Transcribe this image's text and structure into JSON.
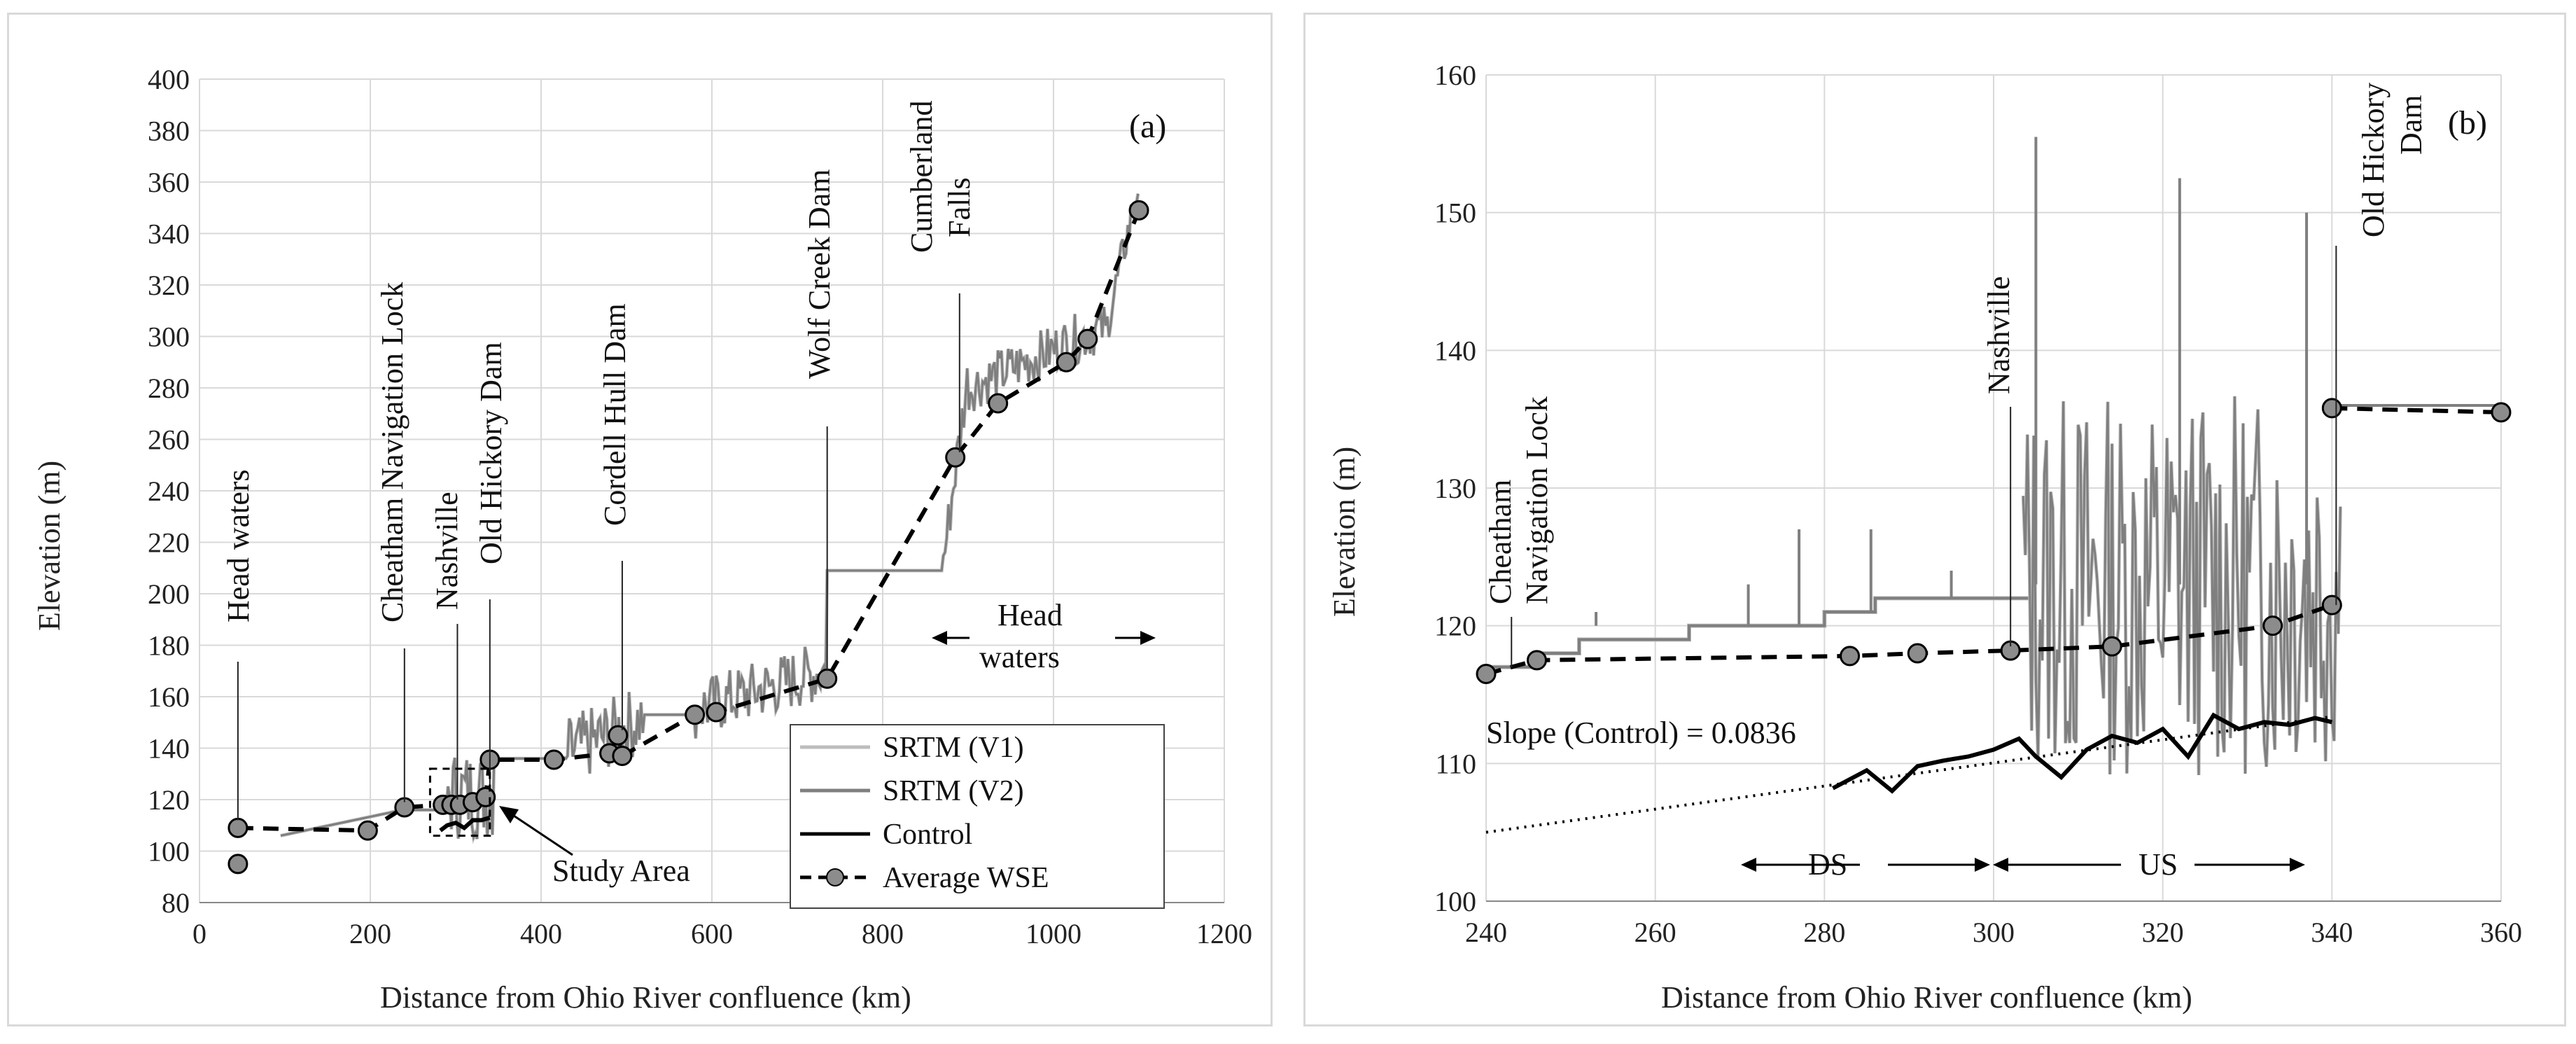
{
  "figure": {
    "panels": [
      "(a)",
      "(b)"
    ]
  },
  "chart_data": [
    {
      "type": "line",
      "panel_label": "(a)",
      "xlabel": "Distance from Ohio River confluence (km)",
      "ylabel": "Elevation (m)",
      "xlim": [
        0,
        1200
      ],
      "ylim": [
        80,
        400
      ],
      "x_ticks": [
        0,
        200,
        400,
        600,
        800,
        1000,
        1200
      ],
      "y_ticks": [
        80,
        100,
        120,
        140,
        160,
        180,
        200,
        220,
        240,
        260,
        280,
        300,
        320,
        340,
        360,
        380,
        400
      ],
      "legend": [
        "SRTM (V1)",
        "SRTM (V2)",
        "Control",
        "Average WSE"
      ],
      "series": [
        {
          "name": "Average WSE",
          "style": "dashed-markers",
          "x": [
            45,
            197,
            240,
            285,
            295,
            305,
            320,
            335,
            340,
            415,
            480,
            490,
            495,
            580,
            605,
            735,
            885,
            935,
            1015,
            1040,
            1100
          ],
          "y": [
            109,
            108,
            117,
            118,
            118,
            118,
            119,
            121,
            135.5,
            135.5,
            138,
            145,
            137,
            153,
            154,
            167,
            253,
            274,
            290,
            299,
            349
          ]
        },
        {
          "name": "Average WSE (extra point)",
          "style": "marker-only",
          "x": [
            45
          ],
          "y": [
            95
          ]
        },
        {
          "name": "Control",
          "style": "solid-black",
          "x": [
            282,
            290,
            300,
            310,
            320,
            330,
            340
          ],
          "y": [
            108,
            110,
            111,
            109,
            112,
            112,
            113
          ]
        }
      ],
      "annotations": [
        {
          "text": "Head waters",
          "x": 45,
          "y": 109
        },
        {
          "text": "Cheatham Navigation Lock",
          "x": 240,
          "y": 117
        },
        {
          "text": "Nashville",
          "x": 302,
          "y": 118
        },
        {
          "text": "Old Hickory Dam",
          "x": 340,
          "y": 121
        },
        {
          "text": "Cordell Hull Dam",
          "x": 495,
          "y": 145
        },
        {
          "text": "Wolf Creek Dam",
          "x": 735,
          "y": 167
        },
        {
          "text": "Cumberland Falls",
          "x": 890,
          "y": 253
        },
        {
          "text": "Head waters",
          "x": 1000,
          "y": 180
        },
        {
          "text": "Study Area",
          "x": 330,
          "y": 100
        }
      ]
    },
    {
      "type": "line",
      "panel_label": "(b)",
      "xlabel": "Distance from Ohio River confluence (km)",
      "ylabel": "Elevation (m)",
      "xlim": [
        240,
        360
      ],
      "ylim": [
        100,
        160
      ],
      "x_ticks": [
        240,
        260,
        280,
        300,
        320,
        340,
        360
      ],
      "y_ticks": [
        100,
        110,
        120,
        130,
        140,
        150,
        160
      ],
      "series": [
        {
          "name": "Average WSE",
          "style": "dashed-markers",
          "x": [
            240,
            246,
            283,
            291,
            302,
            314,
            333,
            340
          ],
          "y": [
            116.5,
            117.5,
            117.8,
            118,
            118.2,
            118.5,
            120,
            121.5
          ]
        },
        {
          "name": "Average WSE (dam pool)",
          "style": "dashed-markers",
          "x": [
            340,
            360
          ],
          "y": [
            135.8,
            135.5
          ]
        },
        {
          "name": "Control",
          "style": "solid-black",
          "x": [
            281,
            285,
            288,
            291,
            294,
            297,
            300,
            303,
            305,
            308,
            311,
            314,
            317,
            320,
            323,
            326,
            329,
            332,
            335,
            338,
            340
          ],
          "y": [
            108.2,
            109.5,
            108,
            109.8,
            110.2,
            110.5,
            111,
            111.8,
            110.5,
            109,
            111,
            112,
            111.5,
            112.5,
            110.5,
            113.5,
            112.5,
            113,
            112.8,
            113.3,
            113
          ]
        },
        {
          "name": "Linear trend (Control)",
          "style": "dotted",
          "x": [
            240,
            340
          ],
          "y": [
            105,
            113.4
          ]
        }
      ],
      "annotations": [
        {
          "text": "Cheatham",
          "x": 242,
          "y": 117
        },
        {
          "text": "Navigation Lock",
          "x": 242,
          "y": 117
        },
        {
          "text": "Nashville",
          "x": 302,
          "y": 118
        },
        {
          "text": "Old Hickory",
          "x": 340,
          "y": 121.5
        },
        {
          "text": "Dam",
          "x": 340,
          "y": 121.5
        },
        {
          "text": "Slope (Control) = 0.0836",
          "x": 246,
          "y": 114
        },
        {
          "text": "DS",
          "x": 292,
          "y": 103
        },
        {
          "text": "US",
          "x": 322,
          "y": 103
        }
      ]
    }
  ],
  "labels": {
    "a": {
      "panel_tag": "(a)",
      "head_waters_left": "Head waters",
      "cheatham": "Cheatham Navigation Lock",
      "nashville": "Nashville",
      "old_hickory": "Old Hickory Dam",
      "cordell": "Cordell Hull Dam",
      "wolf_creek": "Wolf Creek Dam",
      "cumberland_1": "Cumberland",
      "cumberland_2": "Falls",
      "head_1": "Head",
      "head_2": "waters",
      "study_area": "Study Area",
      "legend_v1": "SRTM (V1)",
      "legend_v2": "SRTM (V2)",
      "legend_control": "Control",
      "legend_wse": "Average WSE",
      "xlabel": "Distance from Ohio River confluence (km)",
      "ylabel": "Elevation (m)"
    },
    "b": {
      "panel_tag": "(b)",
      "cheatham_1": "Cheatham",
      "cheatham_2": "Navigation Lock",
      "nashville": "Nashville",
      "oh_1": "Old Hickory",
      "oh_2": "Dam",
      "slope": "Slope (Control) = 0.0836",
      "ds": "DS",
      "us": "US",
      "xlabel": "Distance from Ohio River confluence (km)",
      "ylabel": "Elevation (m)"
    }
  },
  "colors": {
    "srtm_v1": "#bdbdbd",
    "srtm_v2": "#7f7f7f",
    "control": "#000000",
    "wse_marker": "#8c8c8c",
    "grid": "#d9d9d9"
  }
}
